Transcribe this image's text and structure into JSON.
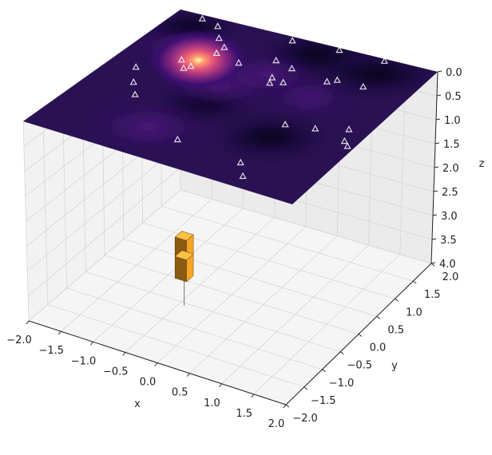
{
  "chart_data": {
    "type": "scatter",
    "title": "",
    "xlabel": "x",
    "ylabel": "y",
    "zlabel": "z",
    "xlim": [
      -2.0,
      2.0
    ],
    "ylim": [
      -2.0,
      2.0
    ],
    "zlim": [
      0.0,
      4.0
    ],
    "z_inverted": true,
    "grid": true,
    "x_ticks": [
      "−2.0",
      "−1.5",
      "−1.0",
      "−0.5",
      "0.0",
      "0.5",
      "1.0",
      "1.5",
      "2.0"
    ],
    "y_ticks": [
      "−2.0",
      "−1.5",
      "−1.0",
      "−0.5",
      "0.0",
      "0.5",
      "1.0",
      "1.5",
      "2.0"
    ],
    "z_ticks": [
      "0.0",
      "0.5",
      "1.0",
      "1.5",
      "2.0",
      "2.5",
      "3.0",
      "3.5",
      "4.0"
    ],
    "surface": {
      "z": 0.0,
      "colormap": "magma",
      "hotspot": {
        "x": -1.0,
        "y": 0.8
      }
    },
    "markers": {
      "marker": "triangle",
      "color": "#ffffff",
      "z": 0.0,
      "points": [
        {
          "x": -1.6,
          "y": 1.9
        },
        {
          "x": -1.3,
          "y": 1.8
        },
        {
          "x": -1.1,
          "y": 1.5
        },
        {
          "x": -0.2,
          "y": 1.9
        },
        {
          "x": 0.5,
          "y": 1.95
        },
        {
          "x": 1.2,
          "y": 1.95
        },
        {
          "x": -0.9,
          "y": 1.3
        },
        {
          "x": -0.9,
          "y": 1.1
        },
        {
          "x": -0.5,
          "y": 1.0
        },
        {
          "x": -1.2,
          "y": 0.7
        },
        {
          "x": -1.0,
          "y": 0.6
        },
        {
          "x": -1.05,
          "y": 0.5
        },
        {
          "x": -0.1,
          "y": 1.3
        },
        {
          "x": 0.2,
          "y": 1.2
        },
        {
          "x": 0.8,
          "y": 1.1
        },
        {
          "x": 0.9,
          "y": 1.2
        },
        {
          "x": 0.1,
          "y": 0.85
        },
        {
          "x": 0.3,
          "y": 0.8
        },
        {
          "x": 0.15,
          "y": 0.7
        },
        {
          "x": 1.3,
          "y": 1.2
        },
        {
          "x": -1.6,
          "y": 0.2
        },
        {
          "x": -1.4,
          "y": -0.2
        },
        {
          "x": -1.2,
          "y": -0.5
        },
        {
          "x": 0.9,
          "y": -0.2
        },
        {
          "x": 1.3,
          "y": -0.1
        },
        {
          "x": 1.7,
          "y": 0.1
        },
        {
          "x": 1.8,
          "y": -0.2
        },
        {
          "x": 1.9,
          "y": -0.3
        },
        {
          "x": -0.1,
          "y": -1.3
        },
        {
          "x": 0.9,
          "y": -1.4
        },
        {
          "x": 1.1,
          "y": -1.7
        }
      ]
    },
    "bars": {
      "color": "#f5a623",
      "x": -0.6,
      "y": -0.25,
      "blocks": [
        {
          "z_top": 2.85,
          "z_bottom": 3.25
        },
        {
          "z_top": 3.25,
          "z_bottom": 3.7
        }
      ],
      "stem_to_z": 4.3
    }
  }
}
